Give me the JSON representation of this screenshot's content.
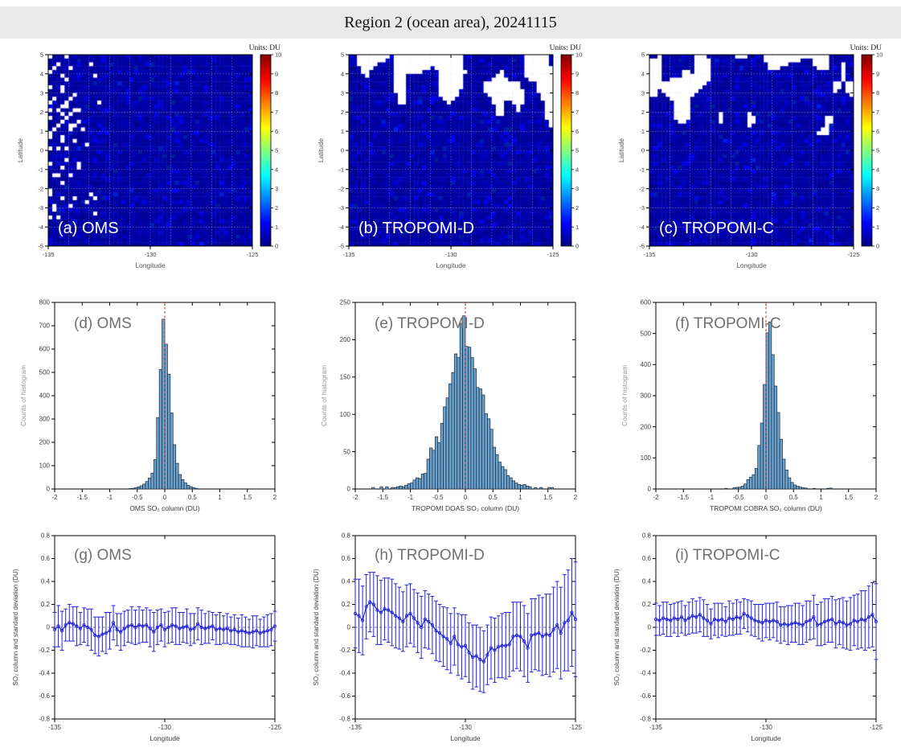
{
  "header": {
    "title": "Region 2 (ocean area), 20241115",
    "bg": "#e9e9e9"
  },
  "colors": {
    "map_base_blue": "#0000a0",
    "missing_data": "#ffffff",
    "histogram_bar_fill": "#6aa3d0",
    "histogram_bar_edge": "#203040",
    "zero_vline_red": "#d94040",
    "errorbar_blue": "#2323d9",
    "zero_hline_black": "#555555",
    "panel_label_gray": "#6f6f6f",
    "panel_label_white": "#ffffff",
    "axis_black": "#000000"
  },
  "chart_data": [
    {
      "id": "a",
      "type": "heatmap",
      "label": "(a) OMS",
      "xlabel": "Longitude",
      "ylabel": "Latitude",
      "xlim": [
        -135,
        -125
      ],
      "ylim": [
        -5,
        5
      ],
      "xticks": [
        -135,
        -130,
        -125
      ],
      "yticks": [
        -5,
        -4,
        -3,
        -2,
        -1,
        0,
        1,
        2,
        3,
        4,
        5
      ],
      "grid": true,
      "colormap": "jet",
      "clim": [
        0,
        10
      ],
      "colorbar_title": "Units: DU",
      "colorbar_ticks": [
        0,
        1,
        2,
        3,
        4,
        5,
        6,
        7,
        8,
        9,
        10
      ],
      "background_value_range_du": [
        0.2,
        0.8
      ],
      "missing": {
        "kind": "speckle",
        "region": "upper-left diagonal speckles",
        "lon_max": -132.4,
        "lat_min": -3.7,
        "seed": 11
      },
      "cell_grid": [
        50,
        50
      ]
    },
    {
      "id": "b",
      "type": "heatmap",
      "label": "(b) TROPOMI-D",
      "xlabel": "Longitude",
      "ylabel": "Latitude",
      "xlim": [
        -135,
        -125
      ],
      "ylim": [
        -5,
        5
      ],
      "xticks": [
        -135,
        -130,
        -125
      ],
      "yticks": [
        -5,
        -4,
        -3,
        -2,
        -1,
        0,
        1,
        2,
        3,
        4,
        5
      ],
      "grid": true,
      "colormap": "jet",
      "clim": [
        0,
        10
      ],
      "colorbar_title": "Units: DU",
      "colorbar_ticks": [
        0,
        1,
        2,
        3,
        4,
        5,
        6,
        7,
        8,
        9,
        10
      ],
      "background_value_range_du": [
        0.2,
        0.8
      ],
      "missing": {
        "kind": "blob",
        "region": "cloud band across top",
        "lat_min": 1.0,
        "threshold": 0.66,
        "seed": 7
      },
      "cell_grid": [
        50,
        50
      ]
    },
    {
      "id": "c",
      "type": "heatmap",
      "label": "(c) TROPOMI-C",
      "xlabel": "Longitude",
      "ylabel": "Latitude",
      "xlim": [
        -135,
        -125
      ],
      "ylim": [
        -5,
        5
      ],
      "xticks": [
        -135,
        -130,
        -125
      ],
      "yticks": [
        -5,
        -4,
        -3,
        -2,
        -1,
        0,
        1,
        2,
        3,
        4,
        5
      ],
      "grid": true,
      "colormap": "jet",
      "clim": [
        0,
        10
      ],
      "colorbar_title": "Units: DU",
      "colorbar_ticks": [
        0,
        1,
        2,
        3,
        4,
        5,
        6,
        7,
        8,
        9,
        10
      ],
      "background_value_range_du": [
        0.2,
        0.8
      ],
      "missing": {
        "kind": "blob",
        "region": "cloud band across top, lighter",
        "lat_min": 0.8,
        "threshold": 0.74,
        "seed": 19
      },
      "cell_grid": [
        50,
        50
      ]
    },
    {
      "id": "d",
      "type": "histogram",
      "label": "(d) OMS",
      "xlabel": "OMS SO₂ column (DU)",
      "ylabel": "Counts of histogram",
      "xlim": [
        -2,
        2
      ],
      "ylim": [
        0,
        800
      ],
      "xtick_step": 0.5,
      "ytick_step": 100,
      "bin_width": 0.05,
      "vline_x": 0,
      "bars": [
        [
          -0.65,
          2
        ],
        [
          -0.6,
          3
        ],
        [
          -0.55,
          5
        ],
        [
          -0.5,
          9
        ],
        [
          -0.45,
          14
        ],
        [
          -0.4,
          21
        ],
        [
          -0.35,
          32
        ],
        [
          -0.3,
          47
        ],
        [
          -0.25,
          68
        ],
        [
          -0.2,
          126
        ],
        [
          -0.15,
          306
        ],
        [
          -0.1,
          512
        ],
        [
          -0.05,
          728
        ],
        [
          0,
          621
        ],
        [
          0.05,
          492
        ],
        [
          0.1,
          326
        ],
        [
          0.15,
          190
        ],
        [
          0.2,
          110
        ],
        [
          0.25,
          62
        ],
        [
          0.3,
          40
        ],
        [
          0.35,
          26
        ],
        [
          0.4,
          16
        ],
        [
          0.45,
          10
        ],
        [
          0.5,
          6
        ],
        [
          0.55,
          3
        ]
      ]
    },
    {
      "id": "e",
      "type": "histogram",
      "label": "(e) TROPOMI-D",
      "xlabel": "TROPOMI DOAS SO₂ column (DU)",
      "ylabel": "Counts of histogram",
      "xlim": [
        -2,
        2
      ],
      "ylim": [
        0,
        250
      ],
      "xtick_step": 0.5,
      "ytick_step": 50,
      "bin_width": 0.05,
      "vline_x": 0,
      "bars": [
        [
          -1.7,
          2
        ],
        [
          -1.55,
          3
        ],
        [
          -1.45,
          3
        ],
        [
          -1.35,
          2
        ],
        [
          -1.3,
          2
        ],
        [
          -1.25,
          3
        ],
        [
          -1.2,
          4
        ],
        [
          -1.15,
          3
        ],
        [
          -1.1,
          5
        ],
        [
          -1.05,
          7
        ],
        [
          -1,
          8
        ],
        [
          -0.95,
          12
        ],
        [
          -0.9,
          15
        ],
        [
          -0.85,
          14
        ],
        [
          -0.8,
          20
        ],
        [
          -0.75,
          21
        ],
        [
          -0.7,
          40
        ],
        [
          -0.65,
          55
        ],
        [
          -0.6,
          52
        ],
        [
          -0.55,
          70
        ],
        [
          -0.5,
          62
        ],
        [
          -0.45,
          88
        ],
        [
          -0.4,
          110
        ],
        [
          -0.35,
          122
        ],
        [
          -0.3,
          141
        ],
        [
          -0.25,
          156
        ],
        [
          -0.2,
          181
        ],
        [
          -0.15,
          176
        ],
        [
          -0.1,
          222
        ],
        [
          -0.05,
          232
        ],
        [
          0,
          191
        ],
        [
          0.05,
          190
        ],
        [
          0.1,
          176
        ],
        [
          0.15,
          161
        ],
        [
          0.2,
          136
        ],
        [
          0.25,
          134
        ],
        [
          0.3,
          126
        ],
        [
          0.35,
          101
        ],
        [
          0.4,
          94
        ],
        [
          0.45,
          80
        ],
        [
          0.5,
          56
        ],
        [
          0.55,
          46
        ],
        [
          0.6,
          36
        ],
        [
          0.65,
          30
        ],
        [
          0.7,
          26
        ],
        [
          0.75,
          18
        ],
        [
          0.8,
          15
        ],
        [
          0.85,
          11
        ],
        [
          0.9,
          8
        ],
        [
          0.95,
          6
        ],
        [
          1,
          5
        ],
        [
          1.05,
          6
        ],
        [
          1.1,
          4
        ],
        [
          1.15,
          3
        ],
        [
          1.25,
          2
        ],
        [
          1.35,
          2
        ],
        [
          1.5,
          2
        ],
        [
          1.55,
          2
        ]
      ]
    },
    {
      "id": "f",
      "type": "histogram",
      "label": "(f) TROPOMI-C",
      "xlabel": "TROPOMI COBRA SO₂ column (DU)",
      "ylabel": "Counts of histogram",
      "xlim": [
        -2,
        2
      ],
      "ylim": [
        0,
        600
      ],
      "xtick_step": 0.5,
      "ytick_step": 100,
      "bin_width": 0.05,
      "vline_x": 0,
      "bars": [
        [
          -0.75,
          2
        ],
        [
          -0.6,
          4
        ],
        [
          -0.55,
          5
        ],
        [
          -0.5,
          6
        ],
        [
          -0.45,
          9
        ],
        [
          -0.4,
          16
        ],
        [
          -0.35,
          30
        ],
        [
          -0.3,
          38
        ],
        [
          -0.25,
          46
        ],
        [
          -0.2,
          66
        ],
        [
          -0.15,
          140
        ],
        [
          -0.1,
          212
        ],
        [
          -0.05,
          336
        ],
        [
          0,
          502
        ],
        [
          0.05,
          537
        ],
        [
          0.1,
          432
        ],
        [
          0.15,
          331
        ],
        [
          0.2,
          246
        ],
        [
          0.25,
          160
        ],
        [
          0.3,
          96
        ],
        [
          0.35,
          61
        ],
        [
          0.4,
          36
        ],
        [
          0.45,
          21
        ],
        [
          0.5,
          13
        ],
        [
          0.55,
          9
        ],
        [
          0.6,
          6
        ],
        [
          0.65,
          4
        ],
        [
          0.7,
          3
        ],
        [
          0.85,
          2
        ],
        [
          1.1,
          2
        ],
        [
          1.15,
          3
        ]
      ]
    },
    {
      "id": "g",
      "type": "errorbar",
      "label": "(g) OMS",
      "xlabel": "Longitude",
      "ylabel": "SO₂ column and standard deviation (DU)",
      "xlim": [
        -135,
        -125
      ],
      "ylim": [
        -0.8,
        0.8
      ],
      "xticks": [
        -135,
        -130,
        -125
      ],
      "ytick_step": 0.2,
      "hline_y": 0,
      "x_start": -135,
      "x_step": 0.16667,
      "y": [
        -0.02,
        0.01,
        -0.03,
        0.02,
        0.04,
        0.03,
        0.01,
        -0.01,
        0.02,
        0,
        -0.02,
        -0.07,
        -0.08,
        -0.06,
        -0.05,
        -0.03,
        0.04,
        -0.02,
        -0.04,
        -0.01,
        0.01,
        0.02,
        0,
        0.02,
        0.01,
        0.02,
        -0.01,
        -0.04,
        0,
        0.02,
        -0.02,
        0,
        0.02,
        0.01,
        -0.01,
        0,
        0.01,
        -0.02,
        -0.01,
        0.03,
        0,
        -0.01,
        0,
        0.01,
        -0.02,
        -0.01,
        -0.02,
        -0.01,
        -0.03,
        -0.02,
        -0.04,
        -0.03,
        -0.04,
        -0.05,
        -0.04,
        -0.03,
        -0.05,
        -0.04,
        -0.03,
        -0.02,
        0.01
      ],
      "err": [
        0.15,
        0.18,
        0.17,
        0.14,
        0.16,
        0.15,
        0.17,
        0.14,
        0.15,
        0.16,
        0.18,
        0.16,
        0.17,
        0.15,
        0.18,
        0.16,
        0.15,
        0.14,
        0.16,
        0.15,
        0.14,
        0.16,
        0.15,
        0.16,
        0.14,
        0.15,
        0.16,
        0.17,
        0.15,
        0.14,
        0.15,
        0.14,
        0.15,
        0.16,
        0.14,
        0.13,
        0.15,
        0.14,
        0.13,
        0.14,
        0.15,
        0.13,
        0.14,
        0.12,
        0.13,
        0.14,
        0.12,
        0.13,
        0.12,
        0.13,
        0.12,
        0.14,
        0.13,
        0.12,
        0.14,
        0.13,
        0.12,
        0.13,
        0.14,
        0.14,
        0.13
      ]
    },
    {
      "id": "h",
      "type": "errorbar",
      "label": "(h) TROPOMI-D",
      "xlabel": "Longitude",
      "ylabel": "SO₂ column and standard deviation (DU)",
      "xlim": [
        -135,
        -125
      ],
      "ylim": [
        -0.8,
        0.8
      ],
      "xticks": [
        -135,
        -130,
        -125
      ],
      "ytick_step": 0.2,
      "hline_y": 0,
      "x_start": -135,
      "x_step": 0.16667,
      "y": [
        0.12,
        0.1,
        0.06,
        0.18,
        0.22,
        0.2,
        0.15,
        0.13,
        0.16,
        0.15,
        0.13,
        0.1,
        0.08,
        0.05,
        0.1,
        0.12,
        0.08,
        0.04,
        0,
        0.07,
        0.05,
        0.02,
        -0.03,
        -0.05,
        -0.08,
        -0.1,
        -0.14,
        -0.08,
        -0.15,
        -0.17,
        -0.16,
        -0.22,
        -0.26,
        -0.25,
        -0.28,
        -0.3,
        -0.24,
        -0.18,
        -0.2,
        -0.17,
        -0.16,
        -0.16,
        -0.15,
        -0.08,
        -0.07,
        -0.08,
        -0.12,
        -0.18,
        -0.07,
        -0.06,
        -0.05,
        -0.08,
        -0.06,
        -0.07,
        -0.02,
        0.02,
        -0.05,
        0.04,
        0.06,
        0.13,
        0.07
      ],
      "err": [
        0.3,
        0.32,
        0.3,
        0.28,
        0.26,
        0.28,
        0.3,
        0.28,
        0.27,
        0.28,
        0.29,
        0.28,
        0.27,
        0.26,
        0.27,
        0.26,
        0.25,
        0.26,
        0.27,
        0.25,
        0.24,
        0.25,
        0.26,
        0.25,
        0.26,
        0.27,
        0.26,
        0.25,
        0.27,
        0.28,
        0.27,
        0.26,
        0.28,
        0.27,
        0.28,
        0.27,
        0.26,
        0.27,
        0.28,
        0.27,
        0.28,
        0.29,
        0.28,
        0.3,
        0.29,
        0.3,
        0.31,
        0.3,
        0.32,
        0.31,
        0.33,
        0.34,
        0.35,
        0.36,
        0.37,
        0.38,
        0.4,
        0.42,
        0.44,
        0.47,
        0.5
      ]
    },
    {
      "id": "i",
      "type": "errorbar",
      "label": "(i) TROPOMI-C",
      "xlabel": "Longitude",
      "ylabel": "SO₂ column and standard deviation (DU)",
      "xlim": [
        -135,
        -125
      ],
      "ylim": [
        -0.8,
        0.8
      ],
      "xticks": [
        -135,
        -130,
        -125
      ],
      "ytick_step": 0.2,
      "hline_y": 0,
      "x_start": -135,
      "x_step": 0.16667,
      "y": [
        0.07,
        0.06,
        0.08,
        0.07,
        0.06,
        0.08,
        0.07,
        0.09,
        0.06,
        0.08,
        0.1,
        0.09,
        0.11,
        0.08,
        0.06,
        0.03,
        0.07,
        0.06,
        0.07,
        0.05,
        0.08,
        0.07,
        0.09,
        0.08,
        0.12,
        0.1,
        0.08,
        0.06,
        0.05,
        0.04,
        0.06,
        0.05,
        0.06,
        0.05,
        0.02,
        0.03,
        0.02,
        0.03,
        0.04,
        0.03,
        0.02,
        0.05,
        0.06,
        0.09,
        0.02,
        0.03,
        0.05,
        0.06,
        0.07,
        0.03,
        0.05,
        0.04,
        0.02,
        0.03,
        0.06,
        0.05,
        0.07,
        0.06,
        0.09,
        0.11,
        0.05
      ],
      "err": [
        0.14,
        0.13,
        0.14,
        0.15,
        0.14,
        0.13,
        0.15,
        0.14,
        0.13,
        0.14,
        0.15,
        0.14,
        0.15,
        0.16,
        0.14,
        0.13,
        0.14,
        0.15,
        0.14,
        0.13,
        0.15,
        0.14,
        0.15,
        0.14,
        0.13,
        0.14,
        0.15,
        0.14,
        0.15,
        0.16,
        0.15,
        0.16,
        0.15,
        0.17,
        0.16,
        0.15,
        0.17,
        0.16,
        0.17,
        0.18,
        0.17,
        0.18,
        0.17,
        0.19,
        0.18,
        0.19,
        0.2,
        0.19,
        0.2,
        0.21,
        0.2,
        0.22,
        0.21,
        0.23,
        0.22,
        0.24,
        0.25,
        0.26,
        0.27,
        0.28,
        0.33
      ]
    }
  ]
}
